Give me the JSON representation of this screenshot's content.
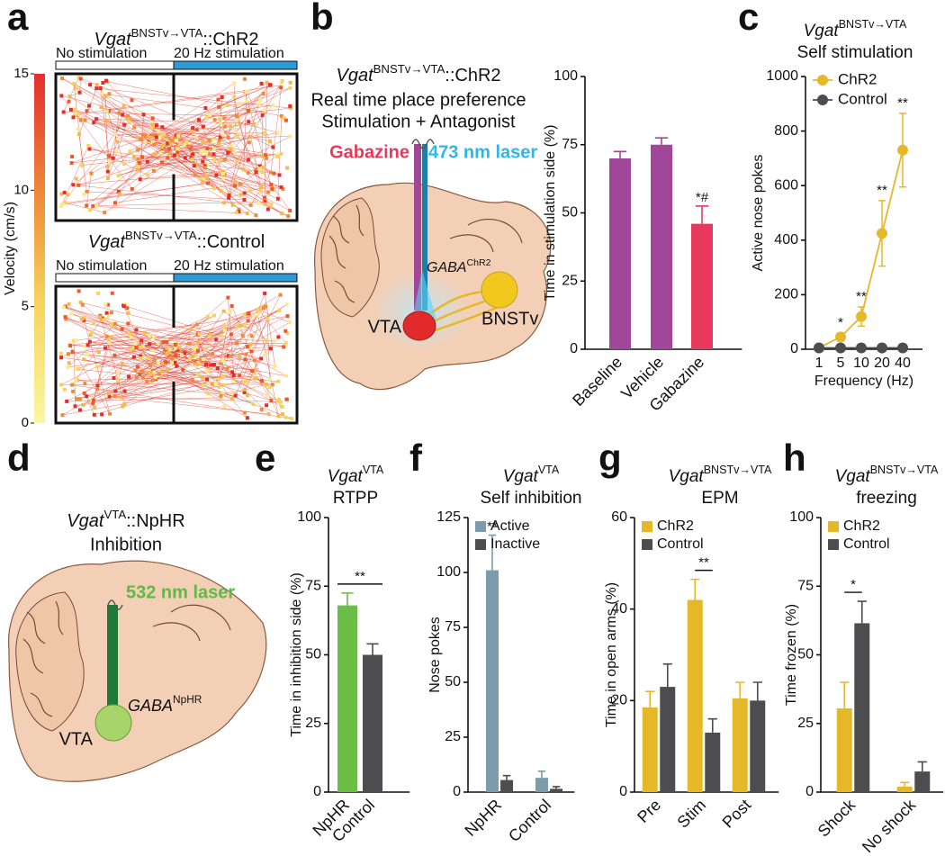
{
  "figure": {
    "panel_labels": [
      "a",
      "b",
      "c",
      "d",
      "e",
      "f",
      "g",
      "h"
    ]
  },
  "panel_a": {
    "arenas": [
      {
        "title": {
          "gene": "Vgat",
          "sup": "BNSTv→VTA",
          "suffix": "::ChR2"
        },
        "zone_left": "No stimulation",
        "zone_right": "20 Hz stimulation"
      },
      {
        "title": {
          "gene": "Vgat",
          "sup": "BNSTv→VTA",
          "suffix": "::Control"
        },
        "zone_left": "No stimulation",
        "zone_right": "20 Hz stimulation"
      }
    ],
    "colorbar": {
      "label": "Velocity (cm/s)",
      "lim": [
        0,
        15
      ],
      "ticks": [
        0,
        5,
        10,
        15
      ]
    }
  },
  "panel_b_diagram": {
    "title": {
      "gene": "Vgat",
      "sup": "BNSTv→VTA",
      "suffix": "::ChR2"
    },
    "lines": [
      "Real time place preference",
      "Stimulation + Antagonist"
    ],
    "drug": "Gabazine",
    "laser": "473 nm laser",
    "cell": {
      "gene": "GABA",
      "sup": "ChR2"
    },
    "target": "VTA",
    "source": "BNSTv"
  },
  "panel_d_diagram": {
    "title": {
      "gene": "Vgat",
      "sup": "VTA",
      "suffix": "::NpHR"
    },
    "lines": [
      "Inhibition"
    ],
    "laser": "532 nm laser",
    "cell": {
      "gene": "GABA",
      "sup": "NpHR"
    },
    "target": "VTA"
  },
  "chart_data": [
    {
      "type": "bar",
      "categories": [
        "Baseline",
        "Vehicle",
        "Gabazine"
      ],
      "values": [
        70,
        75,
        46
      ],
      "errors": [
        2.5,
        2.5,
        6.5
      ],
      "colors": [
        "#a1479a",
        "#a1479a",
        "#e8385c"
      ],
      "significance": [
        null,
        null,
        "*#"
      ],
      "ylabel": "Time in stimulation side (%)",
      "ylim": [
        0,
        100
      ],
      "yticks": [
        0,
        25,
        50,
        75,
        100
      ]
    },
    {
      "type": "line",
      "title": {
        "gene": "Vgat",
        "sup": "BNSTv→VTA"
      },
      "subtitle": "Self stimulation",
      "categories": [
        "1",
        "5",
        "10",
        "20",
        "40"
      ],
      "series": [
        {
          "name": "ChR2",
          "color": "#e5b82a",
          "values": [
            5,
            45,
            120,
            425,
            730
          ],
          "errors": [
            3,
            15,
            35,
            120,
            135
          ],
          "significance": [
            null,
            "*",
            "**",
            "**",
            "**"
          ]
        },
        {
          "name": "Control",
          "color": "#4d4d4f",
          "values": [
            5,
            5,
            5,
            5,
            5
          ]
        }
      ],
      "xlabel": "Frequency (Hz)",
      "ylabel": "Active nose pokes",
      "ylim": [
        0,
        1000
      ],
      "yticks": [
        0,
        200,
        400,
        600,
        800,
        1000
      ]
    },
    {
      "type": "bar",
      "title": {
        "gene": "Vgat",
        "sup": "VTA"
      },
      "subtitle": "RTPP",
      "categories": [
        "NpHR",
        "Control"
      ],
      "values": [
        68,
        50
      ],
      "errors": [
        4.5,
        4
      ],
      "colors": [
        "#6abd45",
        "#4d4d4f"
      ],
      "bracket": {
        "text": "**"
      },
      "ylabel": "Time in inhibition side (%)",
      "ylim": [
        0,
        100
      ],
      "yticks": [
        0,
        25,
        50,
        75,
        100
      ]
    },
    {
      "type": "bar",
      "title": {
        "gene": "Vgat",
        "sup": "VTA"
      },
      "subtitle": "Self inhibition",
      "categories": [
        "NpHR",
        "Control"
      ],
      "series": [
        {
          "name": "Active",
          "color": "#7c9cad",
          "values": [
            101,
            6.5
          ],
          "errors": [
            16,
            3
          ],
          "significance": [
            "**",
            null
          ]
        },
        {
          "name": "Inactive",
          "color": "#4d4d4f",
          "values": [
            5.5,
            1.5
          ],
          "errors": [
            2,
            1
          ]
        }
      ],
      "ylabel": "Nose pokes",
      "ylim": [
        0,
        125
      ],
      "yticks": [
        0,
        25,
        50,
        75,
        100,
        125
      ]
    },
    {
      "type": "bar",
      "title": {
        "gene": "Vgat",
        "sup": "BNSTv→VTA"
      },
      "subtitle": "EPM",
      "categories": [
        "Pre",
        "Stim",
        "Post"
      ],
      "series": [
        {
          "name": "ChR2",
          "color": "#e5b82a",
          "values": [
            18.5,
            42,
            20.5
          ],
          "errors": [
            3.5,
            4.5,
            3.5
          ]
        },
        {
          "name": "Control",
          "color": "#4d4d4f",
          "values": [
            23,
            13,
            20
          ],
          "errors": [
            5,
            3,
            4
          ]
        }
      ],
      "bracket": {
        "text": "**",
        "category": "Stim"
      },
      "ylabel": "Time in open arms (%)",
      "ylim": [
        0,
        60
      ],
      "yticks": [
        0,
        20,
        40,
        60
      ]
    },
    {
      "type": "bar",
      "title": {
        "gene": "Vgat",
        "sup": "BNSTv→VTA"
      },
      "subtitle": "freezing",
      "categories": [
        "Shock",
        "No shock"
      ],
      "series": [
        {
          "name": "ChR2",
          "color": "#e5b82a",
          "values": [
            30.5,
            2
          ],
          "errors": [
            9.5,
            1.5
          ]
        },
        {
          "name": "Control",
          "color": "#4d4d4f",
          "values": [
            61.5,
            7.5
          ],
          "errors": [
            8,
            3.5
          ]
        }
      ],
      "bracket": {
        "text": "*",
        "category": "Shock"
      },
      "ylabel": "Time frozen (%)",
      "ylim": [
        0,
        100
      ],
      "yticks": [
        0,
        25,
        50,
        75,
        100
      ]
    }
  ]
}
